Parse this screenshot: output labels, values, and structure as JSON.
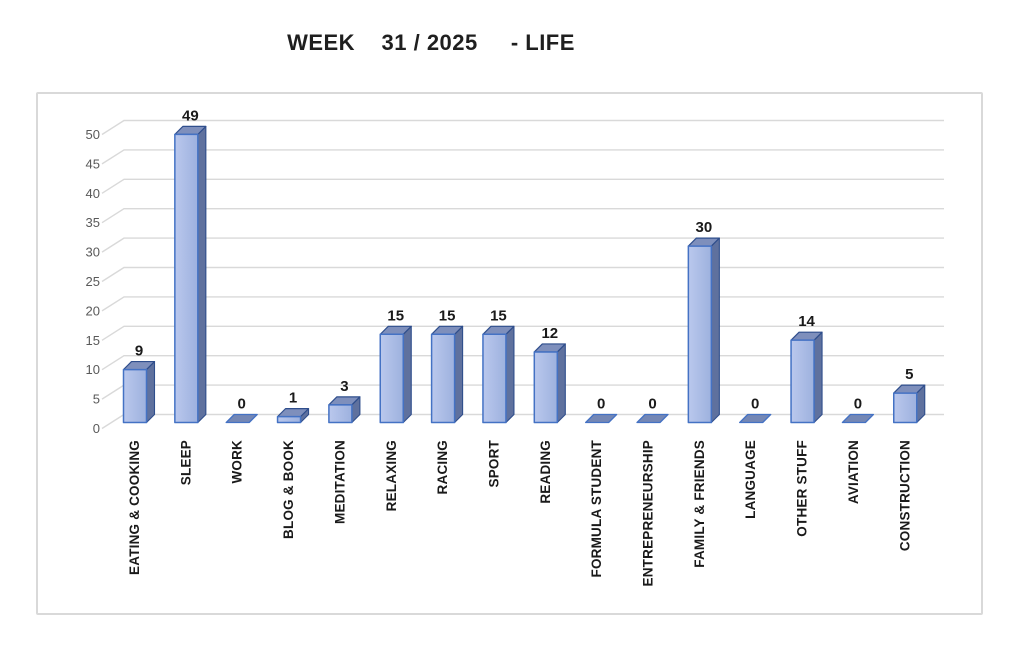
{
  "title": "WEEK    31 / 2025     - LIFE",
  "chart_data": {
    "type": "bar",
    "style": "3d-column",
    "title": "WEEK    31 / 2025     - LIFE",
    "categories": [
      "EATING & COOKING",
      "SLEEP",
      "WORK",
      "BLOG & BOOK",
      "MEDITATION",
      "RELAXING",
      "RACING",
      "SPORT",
      "READING",
      "FORMULA STUDENT",
      "ENTREPRENEURSHIP",
      "FAMILY & FRIENDS",
      "LANGUAGE",
      "OTHER STUFF",
      "AVIATION",
      "CONSTRUCTION"
    ],
    "values": [
      9,
      49,
      0,
      1,
      3,
      15,
      15,
      15,
      12,
      0,
      0,
      30,
      0,
      14,
      0,
      5
    ],
    "xlabel": "",
    "ylabel": "",
    "ylim": [
      0,
      50
    ],
    "yticks": [
      0,
      5,
      10,
      15,
      20,
      25,
      30,
      35,
      40,
      45,
      50
    ],
    "grid": true,
    "legend": false,
    "data_labels": true,
    "colors": {
      "bar_front_light": "#bac8ed",
      "bar_front_dark": "#9db1de",
      "bar_side": "#5f719e",
      "bar_top": "#7e8fbc",
      "bar_zero_top": "#7487b5",
      "bar_border": "#4472c4",
      "bar_top_border": "#2f4e8c",
      "gridline": "#d9d9d9",
      "tick_label": "#595959",
      "value_label": "#1a1a1a",
      "category_label": "#1a1a1a",
      "title": "#1f1f1f"
    }
  }
}
